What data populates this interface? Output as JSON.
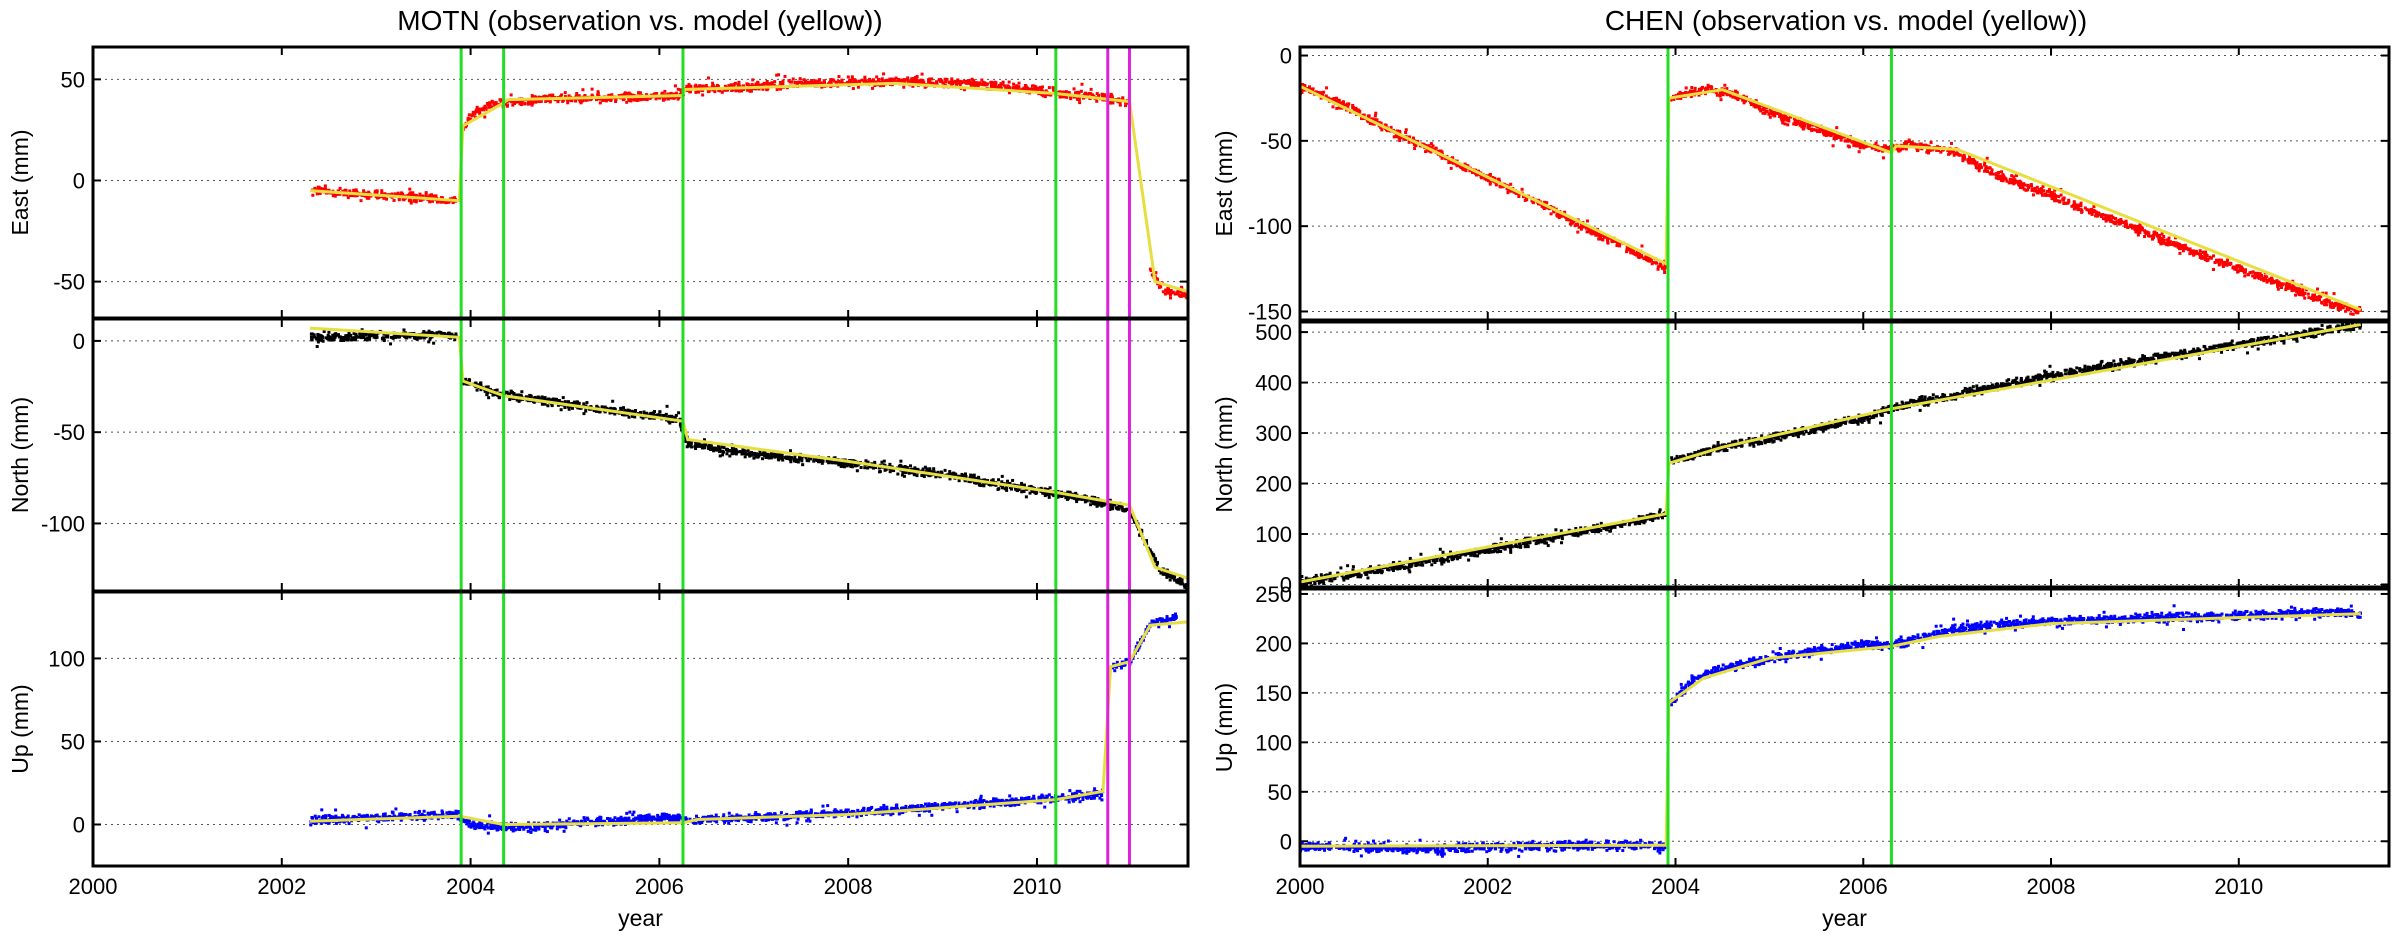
{
  "chart_data": [
    {
      "type": "scatter",
      "title": "MOTN (observation vs. model (yellow))",
      "xlabel": "year",
      "xlim": [
        2000,
        2011.6
      ],
      "xticks": [
        "2000",
        "2002",
        "2004",
        "2006",
        "2008",
        "2010"
      ],
      "grid": "horizontal dotted",
      "model_color": "#e6df3f",
      "vertical_lines": {
        "green": [
          2003.9,
          2004.35,
          2006.25,
          2010.2
        ],
        "magenta": [
          2010.75,
          2010.98
        ],
        "colors": {
          "green": "#22dd22",
          "magenta": "#dd22dd"
        }
      },
      "panels": [
        {
          "ylabel": "East (mm)",
          "ylim": [
            -68,
            66
          ],
          "yticks": [
            "50",
            "0",
            "-50"
          ],
          "color": "#ff0000",
          "observation": [
            [
              2002.3,
              -5
            ],
            [
              2002.6,
              -6
            ],
            [
              2003.0,
              -7
            ],
            [
              2003.4,
              -8
            ],
            [
              2003.85,
              -10
            ],
            [
              2003.92,
              25
            ],
            [
              2004.0,
              32
            ],
            [
              2004.2,
              37
            ],
            [
              2004.4,
              39
            ],
            [
              2004.8,
              40
            ],
            [
              2005.5,
              41
            ],
            [
              2006.2,
              42
            ],
            [
              2006.3,
              45
            ],
            [
              2006.8,
              46
            ],
            [
              2007.5,
              48
            ],
            [
              2008.5,
              49
            ],
            [
              2009.3,
              48
            ],
            [
              2010.0,
              45
            ],
            [
              2010.2,
              43
            ],
            [
              2010.5,
              42
            ],
            [
              2010.75,
              41
            ],
            [
              2010.98,
              38
            ],
            [
              2011.1,
              0
            ],
            [
              2011.2,
              -45
            ],
            [
              2011.35,
              -55
            ],
            [
              2011.6,
              -57
            ]
          ],
          "model": [
            [
              2002.3,
              -5
            ],
            [
              2003.88,
              -10
            ],
            [
              2003.92,
              27
            ],
            [
              2004.3,
              37
            ],
            [
              2004.4,
              40
            ],
            [
              2006.25,
              42
            ],
            [
              2006.27,
              45
            ],
            [
              2008.5,
              48
            ],
            [
              2010.2,
              43
            ],
            [
              2010.98,
              39
            ],
            [
              2011.25,
              -50
            ],
            [
              2011.6,
              -55
            ]
          ]
        },
        {
          "ylabel": "North (mm)",
          "ylim": [
            -137,
            12
          ],
          "yticks": [
            "0",
            "-50",
            "-100"
          ],
          "color": "#000000",
          "observation": [
            [
              2002.3,
              2
            ],
            [
              2002.7,
              2
            ],
            [
              2003.2,
              3
            ],
            [
              2003.85,
              3
            ],
            [
              2003.92,
              -22
            ],
            [
              2004.3,
              -29
            ],
            [
              2004.8,
              -33
            ],
            [
              2005.5,
              -38
            ],
            [
              2006.2,
              -43
            ],
            [
              2006.3,
              -56
            ],
            [
              2007.0,
              -62
            ],
            [
              2008.0,
              -67
            ],
            [
              2009.0,
              -73
            ],
            [
              2010.0,
              -82
            ],
            [
              2010.5,
              -86
            ],
            [
              2010.75,
              -90
            ],
            [
              2010.98,
              -93
            ],
            [
              2011.3,
              -125
            ],
            [
              2011.6,
              -135
            ]
          ],
          "model": [
            [
              2002.3,
              7
            ],
            [
              2003.88,
              2
            ],
            [
              2003.92,
              -22
            ],
            [
              2004.35,
              -30
            ],
            [
              2006.25,
              -44
            ],
            [
              2006.3,
              -54
            ],
            [
              2008.0,
              -66
            ],
            [
              2010.2,
              -83
            ],
            [
              2010.98,
              -90
            ],
            [
              2011.25,
              -124
            ],
            [
              2011.6,
              -130
            ]
          ]
        },
        {
          "ylabel": "Up (mm)",
          "ylim": [
            -25,
            140
          ],
          "yticks": [
            "100",
            "50",
            "0"
          ],
          "color": "#0000ff",
          "observation": [
            [
              2002.3,
              2
            ],
            [
              2002.8,
              4
            ],
            [
              2003.4,
              5
            ],
            [
              2003.85,
              6
            ],
            [
              2004.0,
              0
            ],
            [
              2004.6,
              -2
            ],
            [
              2005.2,
              1
            ],
            [
              2006.0,
              4
            ],
            [
              2006.5,
              3
            ],
            [
              2007.0,
              4
            ],
            [
              2008.0,
              7
            ],
            [
              2009.0,
              11
            ],
            [
              2010.0,
              15
            ],
            [
              2010.7,
              18
            ],
            [
              2010.8,
              95
            ],
            [
              2010.98,
              98
            ],
            [
              2011.2,
              120
            ],
            [
              2011.5,
              125
            ]
          ],
          "model": [
            [
              2002.3,
              2
            ],
            [
              2003.88,
              5
            ],
            [
              2004.35,
              0
            ],
            [
              2006.25,
              1
            ],
            [
              2006.4,
              3
            ],
            [
              2008.0,
              6
            ],
            [
              2010.2,
              15
            ],
            [
              2010.7,
              20
            ],
            [
              2010.78,
              95
            ],
            [
              2010.98,
              98
            ],
            [
              2011.2,
              120
            ],
            [
              2011.6,
              122
            ]
          ]
        }
      ]
    },
    {
      "type": "scatter",
      "title": "CHEN (observation vs. model (yellow))",
      "xlabel": "year",
      "xlim": [
        2000,
        2011.6
      ],
      "xticks": [
        "2000",
        "2002",
        "2004",
        "2006",
        "2008",
        "2010"
      ],
      "grid": "horizontal dotted",
      "model_color": "#e6df3f",
      "vertical_lines": {
        "green": [
          2003.92,
          2006.3
        ],
        "magenta": [],
        "colors": {
          "green": "#22dd22",
          "magenta": "#dd22dd"
        }
      },
      "panels": [
        {
          "ylabel": "East (mm)",
          "ylim": [
            -155,
            5
          ],
          "yticks": [
            "0",
            "-50",
            "-100",
            "-150"
          ],
          "color": "#ff0000",
          "observation": [
            [
              2000.0,
              -18
            ],
            [
              2000.5,
              -30
            ],
            [
              2001.0,
              -45
            ],
            [
              2001.5,
              -58
            ],
            [
              2002.0,
              -72
            ],
            [
              2002.5,
              -85
            ],
            [
              2003.0,
              -100
            ],
            [
              2003.5,
              -113
            ],
            [
              2003.9,
              -125
            ],
            [
              2003.95,
              -25
            ],
            [
              2004.3,
              -20
            ],
            [
              2004.6,
              -22
            ],
            [
              2005.0,
              -33
            ],
            [
              2005.5,
              -43
            ],
            [
              2006.0,
              -53
            ],
            [
              2006.3,
              -55
            ],
            [
              2006.5,
              -52
            ],
            [
              2007.0,
              -57
            ],
            [
              2007.5,
              -72
            ],
            [
              2008.0,
              -82
            ],
            [
              2008.5,
              -93
            ],
            [
              2009.0,
              -103
            ],
            [
              2009.5,
              -115
            ],
            [
              2010.0,
              -125
            ],
            [
              2010.5,
              -135
            ],
            [
              2011.0,
              -146
            ],
            [
              2011.3,
              -150
            ]
          ],
          "model": [
            [
              2000.0,
              -18
            ],
            [
              2003.9,
              -122
            ],
            [
              2003.93,
              -25
            ],
            [
              2004.5,
              -20
            ],
            [
              2006.3,
              -57
            ],
            [
              2006.35,
              -53
            ],
            [
              2007.0,
              -55
            ],
            [
              2011.3,
              -149
            ]
          ]
        },
        {
          "ylabel": "North (mm)",
          "ylim": [
            -5,
            520
          ],
          "yticks": [
            "500",
            "400",
            "300",
            "200",
            "100",
            "0"
          ],
          "color": "#000000",
          "observation": [
            [
              2000.0,
              5
            ],
            [
              2000.5,
              18
            ],
            [
              2001.0,
              35
            ],
            [
              2001.5,
              50
            ],
            [
              2002.0,
              68
            ],
            [
              2002.5,
              85
            ],
            [
              2003.0,
              105
            ],
            [
              2003.5,
              122
            ],
            [
              2003.9,
              140
            ],
            [
              2003.95,
              245
            ],
            [
              2004.5,
              272
            ],
            [
              2005.0,
              290
            ],
            [
              2005.5,
              308
            ],
            [
              2006.0,
              330
            ],
            [
              2006.3,
              350
            ],
            [
              2007.0,
              375
            ],
            [
              2007.5,
              395
            ],
            [
              2008.0,
              415
            ],
            [
              2008.5,
              428
            ],
            [
              2009.0,
              445
            ],
            [
              2009.5,
              460
            ],
            [
              2010.0,
              475
            ],
            [
              2010.5,
              490
            ],
            [
              2011.0,
              505
            ],
            [
              2011.3,
              515
            ]
          ],
          "model": [
            [
              2000.0,
              5
            ],
            [
              2003.9,
              140
            ],
            [
              2003.93,
              240
            ],
            [
              2004.5,
              272
            ],
            [
              2006.3,
              348
            ],
            [
              2011.3,
              515
            ]
          ]
        },
        {
          "ylabel": "Up (mm)",
          "ylim": [
            -25,
            255
          ],
          "yticks": [
            "250",
            "200",
            "150",
            "100",
            "50",
            "0"
          ],
          "color": "#0000ff",
          "observation": [
            [
              2000.0,
              -5
            ],
            [
              2000.5,
              -6
            ],
            [
              2001.0,
              -7
            ],
            [
              2001.5,
              -8
            ],
            [
              2002.0,
              -6
            ],
            [
              2002.5,
              -5
            ],
            [
              2003.0,
              -4
            ],
            [
              2003.5,
              -4
            ],
            [
              2003.9,
              -5
            ],
            [
              2003.95,
              140
            ],
            [
              2004.2,
              165
            ],
            [
              2004.5,
              175
            ],
            [
              2005.0,
              185
            ],
            [
              2005.5,
              192
            ],
            [
              2006.0,
              200
            ],
            [
              2006.3,
              198
            ],
            [
              2007.0,
              215
            ],
            [
              2007.5,
              220
            ],
            [
              2008.0,
              222
            ],
            [
              2009.0,
              225
            ],
            [
              2010.0,
              228
            ],
            [
              2011.0,
              232
            ],
            [
              2011.3,
              230
            ]
          ],
          "model": [
            [
              2000.0,
              -5
            ],
            [
              2003.9,
              -4
            ],
            [
              2003.93,
              140
            ],
            [
              2004.3,
              165
            ],
            [
              2005.0,
              185
            ],
            [
              2006.3,
              197
            ],
            [
              2006.8,
              207
            ],
            [
              2008.0,
              220
            ],
            [
              2011.3,
              230
            ]
          ]
        }
      ]
    }
  ]
}
